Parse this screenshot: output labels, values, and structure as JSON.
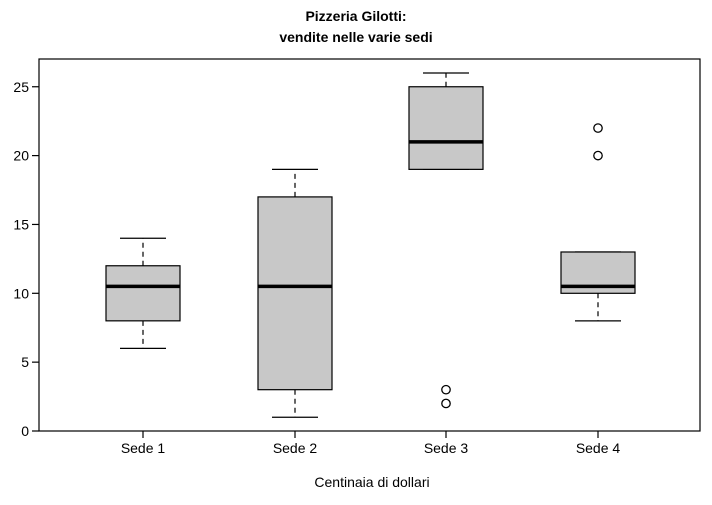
{
  "chart_data": {
    "type": "boxplot",
    "title": "Pizzeria Gilotti:",
    "subtitle": "vendite nelle varie sedi",
    "xlabel": "Centinaia di dollari",
    "ylabel": "",
    "ylim": [
      0,
      27
    ],
    "yticks": [
      0,
      5,
      10,
      15,
      20,
      25
    ],
    "ytick_labels": [
      "0",
      "5",
      "10",
      "15",
      "20",
      "25"
    ],
    "categories": [
      "Sede 1",
      "Sede 2",
      "Sede 3",
      "Sede 4"
    ],
    "grid": false,
    "legend": "none",
    "colors": {
      "box_fill": "#c8c8c8",
      "stroke": "#000000",
      "background": "#ffffff"
    },
    "boxes": [
      {
        "category": "Sede 1",
        "whisker_low": 6,
        "q1": 8,
        "median": 10.5,
        "q3": 12,
        "whisker_high": 14,
        "outliers": []
      },
      {
        "category": "Sede 2",
        "whisker_low": 1,
        "q1": 3,
        "median": 10.5,
        "q3": 17,
        "whisker_high": 19,
        "outliers": []
      },
      {
        "category": "Sede 3",
        "whisker_low": 19,
        "q1": 19,
        "median": 21,
        "q3": 25,
        "whisker_high": 26,
        "outliers": [
          2,
          3
        ]
      },
      {
        "category": "Sede 4",
        "whisker_low": 8,
        "q1": 10,
        "median": 10.5,
        "q3": 13,
        "whisker_high": 13,
        "outliers": [
          20,
          22
        ]
      }
    ]
  }
}
